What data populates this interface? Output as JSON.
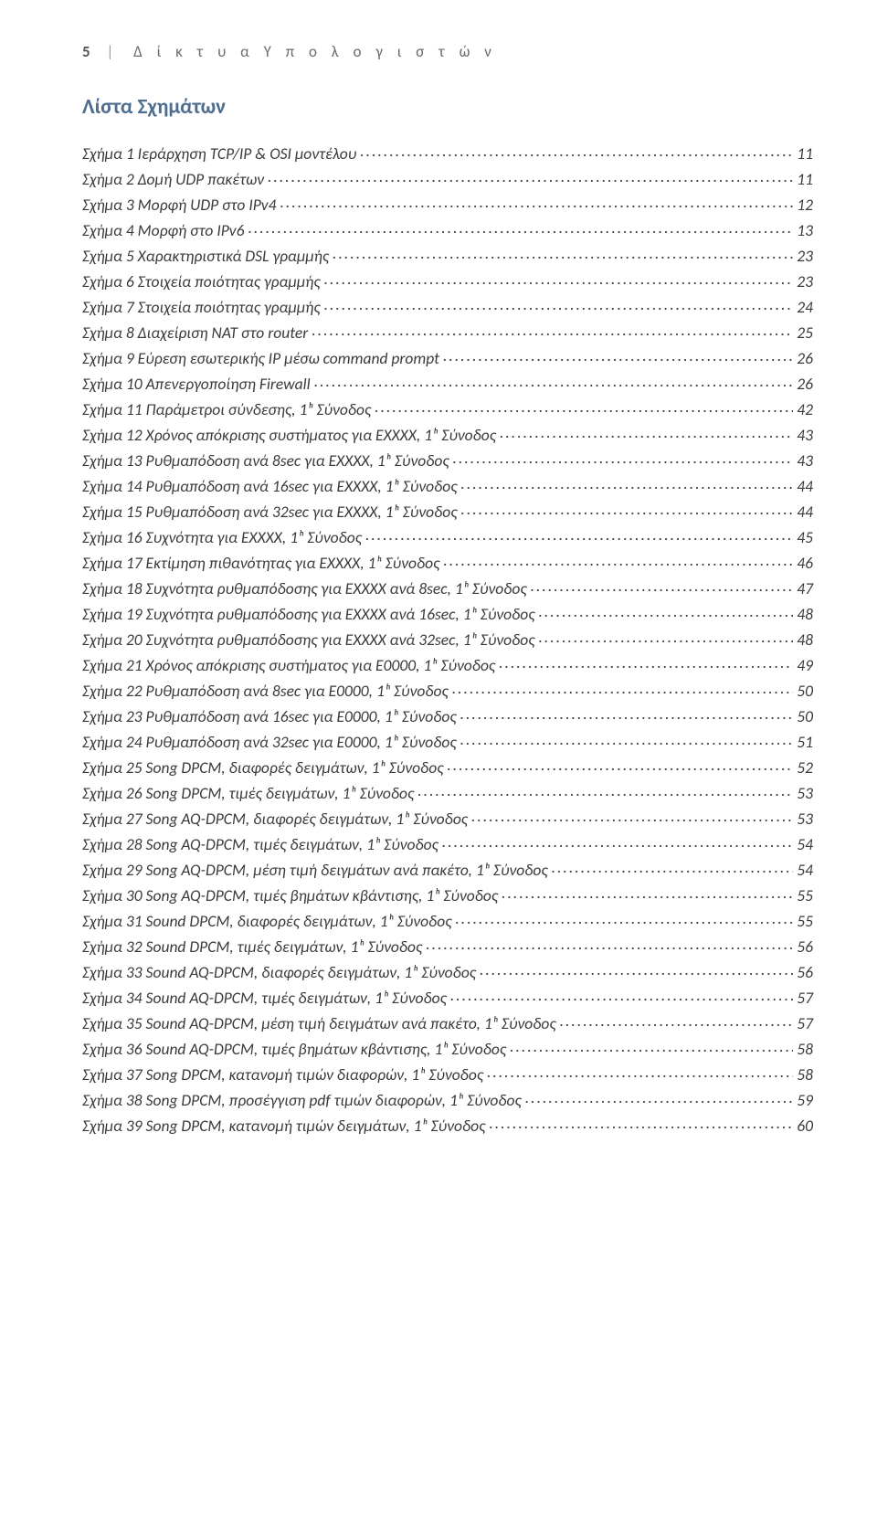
{
  "header": {
    "page_number": "5",
    "separator": "|",
    "title": "Δ ί κ τ υ α   Υ π ο λ ο γ ι σ τ ώ ν"
  },
  "section_title": "Λίστα Σχημάτων",
  "toc": [
    {
      "label": "Σχήμα 1 Ιεράρχηση TCP/IP & OSI μοντέλου",
      "page": "11"
    },
    {
      "label": "Σχήμα 2 Δομή UDP πακέτων",
      "page": "11"
    },
    {
      "label": "Σχήμα 3 Μορφή UDP στο IPv4",
      "page": "12"
    },
    {
      "label": "Σχήμα 4 Μορφή στο IPv6",
      "page": "13"
    },
    {
      "label": "Σχήμα 5 Χαρακτηριστικά DSL γραμμής",
      "page": "23"
    },
    {
      "label": "Σχήμα 6 Στοιχεία ποιότητας γραμμής",
      "page": "23"
    },
    {
      "label": "Σχήμα 7 Στοιχεία ποιότητας γραμμής",
      "page": "24"
    },
    {
      "label": "Σχήμα 8 Διαχείριση NAT στο router",
      "page": "25"
    },
    {
      "label": "Σχήμα 9 Εύρεση εσωτερικής IP μέσω command prompt",
      "page": "26"
    },
    {
      "label": "Σχήμα 10 Απενεργοποίηση Firewall",
      "page": "26"
    },
    {
      "label": "Σχήμα 11 Παράμετροι σύνδεσης, 1ʰ Σύνοδος",
      "page": "42"
    },
    {
      "label": "Σχήμα 12 Χρόνος απόκρισης συστήματος για EXXXX, 1ʰ Σύνοδος",
      "page": "43"
    },
    {
      "label": "Σχήμα 13 Ρυθμαπόδοση ανά 8sec για EXXXX, 1ʰ Σύνοδος",
      "page": "43"
    },
    {
      "label": "Σχήμα 14 Ρυθμαπόδοση ανά 16sec για EXXXX, 1ʰ Σύνοδος",
      "page": "44"
    },
    {
      "label": "Σχήμα 15 Ρυθμαπόδοση ανά 32sec για EXXXX, 1ʰ Σύνοδος",
      "page": "44"
    },
    {
      "label": "Σχήμα 16 Συχνότητα για EXXXX, 1ʰ Σύνοδος",
      "page": "45"
    },
    {
      "label": "Σχήμα 17 Εκτίμηση πιθανότητας για EXXXX, 1ʰ Σύνοδος",
      "page": "46"
    },
    {
      "label": "Σχήμα 18 Συχνότητα ρυθμαπόδοσης για EXXXX ανά 8sec, 1ʰ Σύνοδος",
      "page": "47"
    },
    {
      "label": "Σχήμα 19 Συχνότητα ρυθμαπόδοσης για EXXXX ανά 16sec, 1ʰ Σύνοδος",
      "page": "48"
    },
    {
      "label": "Σχήμα 20 Συχνότητα ρυθμαπόδοσης για EXXXX ανά 32sec, 1ʰ Σύνοδος",
      "page": "48"
    },
    {
      "label": "Σχήμα 21 Χρόνος απόκρισης συστήματος για E0000, 1ʰ Σύνοδος",
      "page": "49"
    },
    {
      "label": "Σχήμα 22 Ρυθμαπόδοση ανά 8sec για E0000, 1ʰ Σύνοδος",
      "page": "50"
    },
    {
      "label": "Σχήμα 23 Ρυθμαπόδοση ανά 16sec για E0000, 1ʰ Σύνοδος",
      "page": "50"
    },
    {
      "label": "Σχήμα 24 Ρυθμαπόδοση ανά 32sec για E0000, 1ʰ Σύνοδος",
      "page": "51"
    },
    {
      "label": "Σχήμα 25 Song DPCM, διαφορές δειγμάτων, 1ʰ Σύνοδος",
      "page": "52"
    },
    {
      "label": "Σχήμα 26 Song DPCM, τιμές δειγμάτων, 1ʰ Σύνοδος",
      "page": "53"
    },
    {
      "label": "Σχήμα 27 Song AQ-DPCM, διαφορές δειγμάτων, 1ʰ Σύνοδος",
      "page": "53"
    },
    {
      "label": "Σχήμα 28 Song AQ-DPCM, τιμές δειγμάτων, 1ʰ Σύνοδος",
      "page": "54"
    },
    {
      "label": "Σχήμα 29 Song AQ-DPCM, μέση τιμή δειγμάτων ανά πακέτο, 1ʰ Σύνοδος",
      "page": "54"
    },
    {
      "label": "Σχήμα 30 Song AQ-DPCM, τιμές βημάτων κβάντισης, 1ʰ Σύνοδος",
      "page": "55"
    },
    {
      "label": "Σχήμα 31 Sound DPCM, διαφορές δειγμάτων, 1ʰ Σύνοδος",
      "page": "55"
    },
    {
      "label": "Σχήμα 32 Sound DPCM, τιμές δειγμάτων, 1ʰ Σύνοδος",
      "page": "56"
    },
    {
      "label": "Σχήμα 33 Sound AQ-DPCM, διαφορές δειγμάτων, 1ʰ Σύνοδος",
      "page": "56"
    },
    {
      "label": "Σχήμα 34 Sound AQ-DPCM, τιμές δειγμάτων, 1ʰ Σύνοδος",
      "page": "57"
    },
    {
      "label": "Σχήμα 35 Sound AQ-DPCM, μέση τιμή δειγμάτων ανά πακέτο, 1ʰ Σύνοδος",
      "page": "57"
    },
    {
      "label": "Σχήμα 36 Sound AQ-DPCM, τιμές βημάτων κβάντισης, 1ʰ Σύνοδος",
      "page": "58"
    },
    {
      "label": "Σχήμα 37 Song DPCM, κατανομή τιμών διαφορών, 1ʰ Σύνοδος",
      "page": "58"
    },
    {
      "label": "Σχήμα 38 Song DPCM, προσέγγιση pdf τιμών διαφορών, 1ʰ Σύνοδος",
      "page": "59"
    },
    {
      "label": "Σχήμα 39 Song DPCM, κατανομή τιμών δειγμάτων, 1ʰ Σύνοδος",
      "page": "60"
    }
  ]
}
